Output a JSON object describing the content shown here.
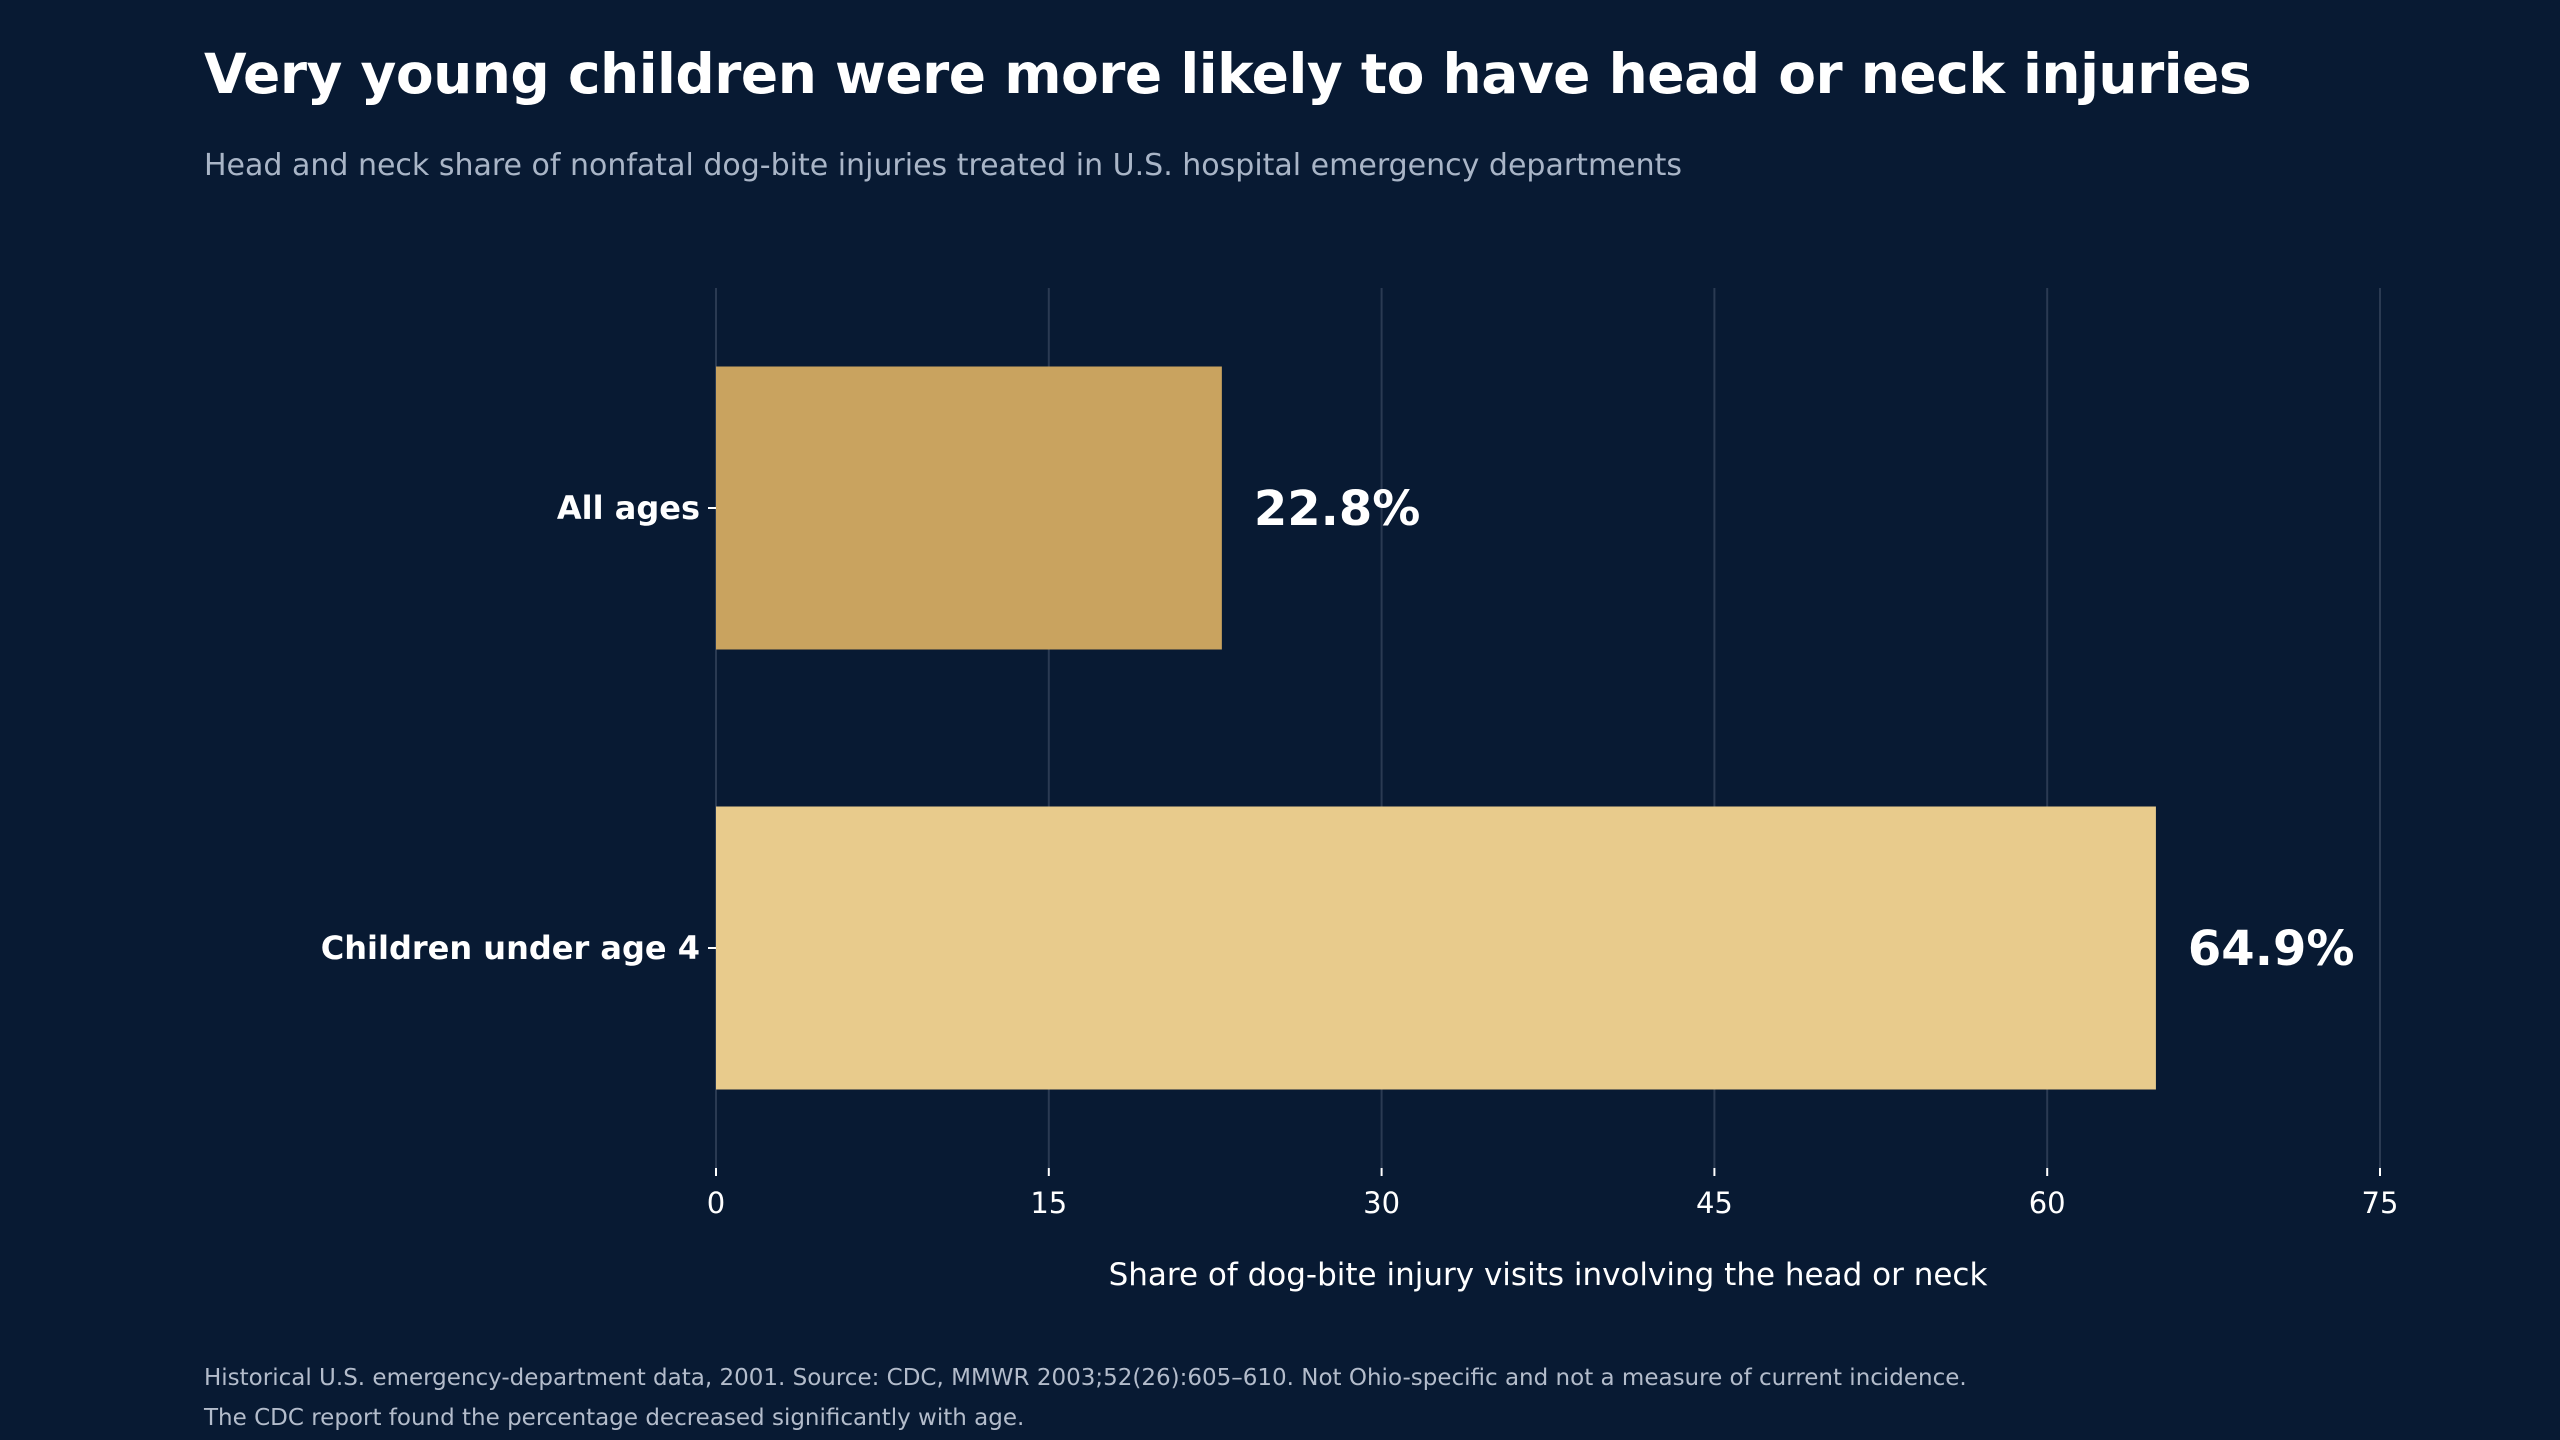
{
  "title": "Very young children were more likely to have head or neck injuries",
  "subtitle": "Head and neck share of nonfatal dog-bite injuries treated in U.S. hospital emergency departments",
  "notes": [
    "Historical U.S. emergency-department data, 2001. Source: CDC, MMWR 2003;52(26):605–610. Not Ohio-specific and not a measure of current incidence.",
    "The CDC report found the percentage decreased significantly with age."
  ],
  "colors": {
    "background": "#081a33",
    "grid": "#2a3a52",
    "text": "#ffffff",
    "subtext": "#a9b5c7"
  },
  "chart_data": {
    "type": "bar",
    "orientation": "horizontal",
    "title": "Very young children were more likely to have head or neck injuries",
    "subtitle": "Head and neck share of nonfatal dog-bite injuries treated in U.S. hospital emergency departments",
    "xlabel": "Share of dog-bite injury visits involving the head or neck",
    "ylabel": "",
    "xlim": [
      0,
      75
    ],
    "xticks": [
      "0",
      "15",
      "30",
      "45",
      "60",
      "75"
    ],
    "grid": true,
    "categories": [
      "All ages",
      "Children under age 4"
    ],
    "values": [
      22.8,
      64.9
    ],
    "value_labels": [
      "22.8%",
      "64.9%"
    ],
    "bar_colors": [
      "#c9a35f",
      "#e8cb8c"
    ]
  }
}
